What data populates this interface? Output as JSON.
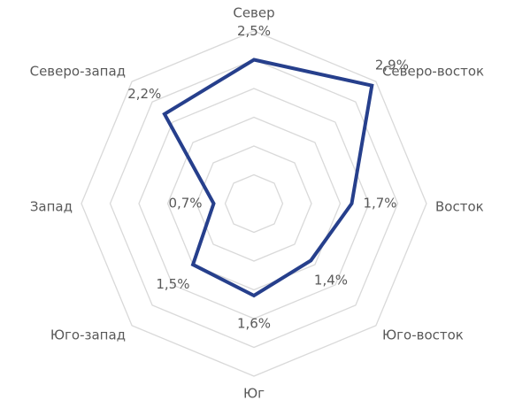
{
  "chart_data": {
    "type": "radar",
    "categories": [
      "Север",
      "Северо-восток",
      "Восток",
      "Юго-восток",
      "Юг",
      "Юго-запад",
      "Запад",
      "Северо-запад"
    ],
    "series": [
      {
        "name": null,
        "color": "#263f8c",
        "values": [
          2.5,
          2.9,
          1.7,
          1.4,
          1.6,
          1.5,
          0.7,
          2.2
        ],
        "value_labels": [
          "2,5%",
          "2,9%",
          "1,7%",
          "1,4%",
          "1,6%",
          "1,5%",
          "0,7%",
          "2,2%"
        ]
      }
    ],
    "ylim": [
      0,
      3
    ],
    "yticks": [
      0,
      0.5,
      1,
      1.5,
      2,
      2.5,
      3
    ],
    "grid": true,
    "grid_color": "#d9d9d9"
  }
}
